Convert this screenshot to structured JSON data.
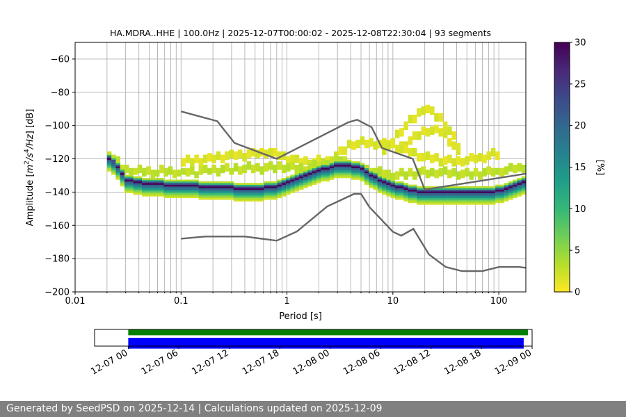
{
  "chart_data": [
    {
      "type": "heatmap",
      "title": "HA.MDRA..HHE | 100.0Hz | 2025-12-07T00:00:02 - 2025-12-08T22:30:04 | 93 segments",
      "xlabel": "Period [s]",
      "ylabel_parts": [
        "Amplitude [",
        "m",
        "2",
        "/s",
        "4",
        "/Hz",
        "] [dB]"
      ],
      "xscale": "log",
      "xlim": [
        0.01,
        180
      ],
      "ylim": [
        -200,
        -50
      ],
      "grid": true,
      "x_ticks": [
        {
          "value": 0.01,
          "label": "0.01"
        },
        {
          "value": 0.1,
          "label": "0.1"
        },
        {
          "value": 1,
          "label": "1"
        },
        {
          "value": 10,
          "label": "10"
        },
        {
          "value": 100,
          "label": "100"
        }
      ],
      "y_ticks": [
        {
          "value": -60,
          "label": "−60"
        },
        {
          "value": -80,
          "label": "−80"
        },
        {
          "value": -100,
          "label": "−100"
        },
        {
          "value": -120,
          "label": "−120"
        },
        {
          "value": -140,
          "label": "−140"
        },
        {
          "value": -160,
          "label": "−160"
        },
        {
          "value": -180,
          "label": "−180"
        },
        {
          "value": -200,
          "label": "−200"
        }
      ],
      "density_mode": {
        "period": [
          0.02,
          0.025,
          0.03,
          0.05,
          0.1,
          0.2,
          0.3,
          0.5,
          0.8,
          1.0,
          1.5,
          2.0,
          3.0,
          4.0,
          5.0,
          6.0,
          8.0,
          10.0,
          15.0,
          20.0,
          40.0,
          80.0,
          120.0,
          180.0
        ],
        "amplitude_db": [
          -119,
          -124,
          -133,
          -135,
          -136,
          -137,
          -137.5,
          -138,
          -137,
          -134,
          -130,
          -127,
          -124,
          -124,
          -126,
          -129,
          -134,
          -136,
          -139,
          -140,
          -140.5,
          -140,
          -138,
          -134
        ]
      },
      "density_secondary_bands": [
        {
          "period": [
            0.02,
            0.03,
            0.1,
            0.3,
            0.8,
            1.5,
            3.0,
            5.0,
            10.0,
            20.0,
            60.0,
            180.0
          ],
          "amplitude_db": [
            -116,
            -127,
            -128,
            -126,
            -125,
            -126,
            -120,
            -126,
            -130,
            -128,
            -129,
            -125
          ]
        },
        {
          "period": [
            0.1,
            0.3,
            0.7,
            1.2,
            2.5,
            4.0,
            6.0,
            10.0,
            20.0,
            40.0,
            100.0
          ],
          "amplitude_db": [
            -122,
            -118,
            -116,
            -121,
            -122,
            -111,
            -110,
            -112,
            -119,
            -122,
            -117
          ]
        },
        {
          "period": [
            8.0,
            12.0,
            20.0,
            30.0,
            45.0
          ],
          "amplitude_db": [
            -116,
            -103,
            -89,
            -97,
            -116
          ]
        },
        {
          "period": [
            12.0,
            20.0,
            30.0,
            45.0
          ],
          "amplitude_db": [
            -113,
            -103,
            -104,
            -119
          ]
        }
      ],
      "nhnm": {
        "name": "",
        "period": [
          0.1,
          0.22,
          0.32,
          0.8,
          3.8,
          4.6,
          6.3,
          7.9,
          15.4,
          20.0,
          354.8
        ],
        "amplitude_db": [
          -91.5,
          -97.4,
          -110.5,
          -120.0,
          -98.0,
          -96.5,
          -101.0,
          -113.5,
          -120.0,
          -138.5,
          -126.0
        ]
      },
      "nlnm": {
        "name": "",
        "period": [
          0.1,
          0.17,
          0.4,
          0.8,
          1.24,
          2.4,
          4.3,
          5.0,
          6.0,
          10.0,
          12.0,
          15.6,
          21.9,
          31.6,
          45.0,
          70.0,
          101.0,
          154.0,
          180.0
        ],
        "amplitude_db": [
          -168.0,
          -166.7,
          -166.7,
          -169.2,
          -163.7,
          -148.6,
          -141.1,
          -141.1,
          -149.0,
          -163.8,
          -166.2,
          -162.1,
          -177.5,
          -185.0,
          -187.5,
          -187.5,
          -185.0,
          -185.0,
          -185.5
        ]
      },
      "model_line_color": "#666666",
      "colorbar": {
        "label": "[%]",
        "min": 0,
        "max": 30,
        "ticks": [
          "0",
          "5",
          "10",
          "15",
          "20",
          "25",
          "30"
        ],
        "colormap": "viridis_r",
        "colormap_stops": [
          "#fde725",
          "#b5de2b",
          "#6ece58",
          "#35b779",
          "#1f9e89",
          "#26828e",
          "#31688e",
          "#3e4989",
          "#482878",
          "#440154"
        ]
      }
    },
    {
      "type": "timeline",
      "x_ticks": [
        "12-07 00",
        "12-07 06",
        "12-07 12",
        "12-07 18",
        "12-08 00",
        "12-08 06",
        "12-08 12",
        "12-08 18",
        "12-09 00"
      ],
      "range_hours": [
        -4,
        48
      ],
      "bars": [
        {
          "color": "#008000",
          "start_hours": 0.0,
          "end_hours": 47.5
        },
        {
          "color": "#0000ff",
          "start_hours": 0.0,
          "end_hours": 47.0
        }
      ]
    }
  ],
  "footer": {
    "text": "Generated by SeedPSD on 2025-12-14 | Calculations updated on 2025-12-09"
  }
}
